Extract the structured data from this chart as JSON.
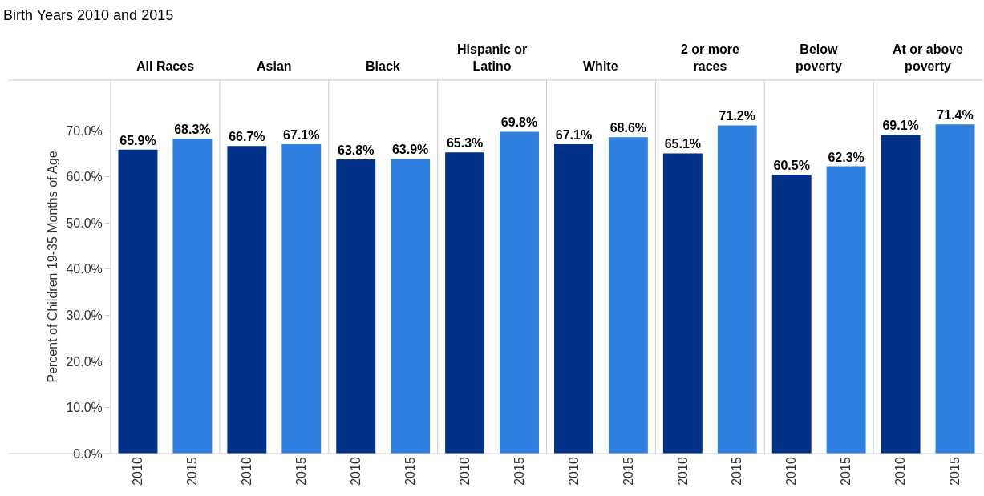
{
  "chart_data": [
    {
      "type": "bar",
      "title": "All Races",
      "categories": [
        "2010",
        "2015"
      ],
      "values": [
        65.9,
        68.3
      ],
      "colors": [
        "#003087",
        "#3080e0"
      ],
      "value_labels": [
        "65.9%",
        "68.3%"
      ],
      "ylim": [
        0,
        81
      ],
      "yticks": [
        {
          "value": 0,
          "label": "0.0%"
        },
        {
          "value": 10,
          "label": "10.0%"
        },
        {
          "value": 20,
          "label": "20.0%"
        },
        {
          "value": 30,
          "label": "30.0%"
        },
        {
          "value": 40,
          "label": "40.0%"
        },
        {
          "value": 50,
          "label": "50.0%"
        },
        {
          "value": 60,
          "label": "60.0%"
        },
        {
          "value": 70,
          "label": "70.0%"
        }
      ],
      "ylabel": "Percent of Children 19-35 Months of Age",
      "annotations": [
        "Birth Years 2010 and 2015"
      ],
      "grid": false
    },
    {
      "type": "bar",
      "title": "Asian",
      "categories": [
        "2010",
        "2015"
      ],
      "values": [
        66.7,
        67.1
      ],
      "colors": [
        "#003087",
        "#3080e0"
      ],
      "value_labels": [
        "66.7%",
        "67.1%"
      ],
      "ylim": [
        0,
        81
      ],
      "tick_labels": "x",
      "grid": false
    },
    {
      "type": "bar",
      "title": "Black",
      "categories": [
        "2010",
        "2015"
      ],
      "values": [
        63.8,
        63.9
      ],
      "colors": [
        "#003087",
        "#3080e0"
      ],
      "value_labels": [
        "63.8%",
        "63.9%"
      ],
      "ylim": [
        0,
        81
      ],
      "tick_labels": "x",
      "grid": false
    },
    {
      "type": "bar",
      "title": "Hispanic or\nLatino",
      "categories": [
        "2010",
        "2015"
      ],
      "values": [
        65.3,
        69.8
      ],
      "colors": [
        "#003087",
        "#3080e0"
      ],
      "value_labels": [
        "65.3%",
        "69.8%"
      ],
      "ylim": [
        0,
        81
      ],
      "tick_labels": "x",
      "grid": false
    },
    {
      "type": "bar",
      "title": "White",
      "categories": [
        "2010",
        "2015"
      ],
      "values": [
        67.1,
        68.6
      ],
      "colors": [
        "#003087",
        "#3080e0"
      ],
      "value_labels": [
        "67.1%",
        "68.6%"
      ],
      "ylim": [
        0,
        81
      ],
      "tick_labels": "x",
      "grid": false
    },
    {
      "type": "bar",
      "title": "2 or more\nraces",
      "categories": [
        "2010",
        "2015"
      ],
      "values": [
        65.1,
        71.2
      ],
      "colors": [
        "#003087",
        "#3080e0"
      ],
      "value_labels": [
        "65.1%",
        "71.2%"
      ],
      "ylim": [
        0,
        81
      ],
      "tick_labels": "x",
      "grid": false
    },
    {
      "type": "bar",
      "title": "Below\npoverty",
      "categories": [
        "2010",
        "2015"
      ],
      "values": [
        60.5,
        62.3
      ],
      "colors": [
        "#003087",
        "#3080e0"
      ],
      "value_labels": [
        "60.5%",
        "62.3%"
      ],
      "ylim": [
        0,
        81
      ],
      "tick_labels": "x",
      "grid": false
    },
    {
      "type": "bar",
      "title": "At or above\npoverty",
      "categories": [
        "2010",
        "2015"
      ],
      "values": [
        69.1,
        71.4
      ],
      "colors": [
        "#003087",
        "#3080e0"
      ],
      "value_labels": [
        "69.1%",
        "71.4%"
      ],
      "ylim": [
        0,
        81
      ],
      "tick_labels": "x",
      "grid": false
    }
  ]
}
